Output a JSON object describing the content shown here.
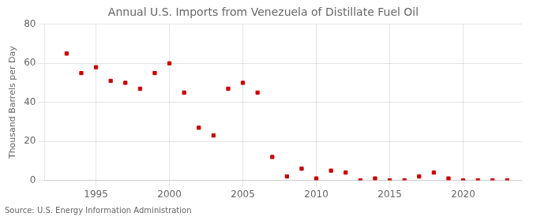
{
  "chart_data": {
    "type": "scatter",
    "title": "Annual U.S. Imports from Venezuela of Distillate Fuel Oil",
    "ylabel": "Thousand Barrels per Day",
    "annotations": [
      "Source: U.S. Energy Information Administration"
    ],
    "x": [
      1993,
      1994,
      1995,
      1996,
      1997,
      1998,
      1999,
      2000,
      2001,
      2002,
      2003,
      2004,
      2005,
      2006,
      2007,
      2008,
      2009,
      2010,
      2011,
      2012,
      2013,
      2014,
      2015,
      2016,
      2017,
      2018,
      2019,
      2020,
      2021,
      2022,
      2023
    ],
    "values": [
      65,
      55,
      58,
      51,
      50,
      47,
      55,
      60,
      45,
      27,
      23,
      47,
      50,
      45,
      12,
      2,
      6,
      1,
      5,
      4,
      0,
      1,
      0,
      0,
      2,
      4,
      1,
      0,
      0,
      0,
      0
    ],
    "color": "#cc0000",
    "marker": "square",
    "xlim": [
      1991.5,
      2024
    ],
    "ylim": [
      0,
      80
    ],
    "xticks": [
      1995,
      2000,
      2005,
      2010,
      2015,
      2020
    ],
    "yticks": [
      0,
      20,
      40,
      60,
      80
    ],
    "grid": true
  }
}
